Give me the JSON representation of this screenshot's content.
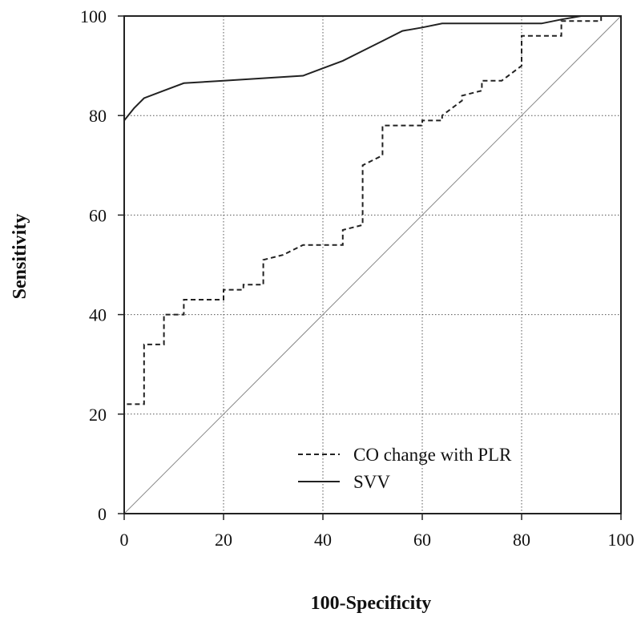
{
  "chart_data": {
    "type": "line",
    "title": "",
    "xlabel": "100-Specificity",
    "ylabel": "Sensitivity",
    "xlim": [
      0,
      100
    ],
    "ylim": [
      0,
      100
    ],
    "xticks": [
      0,
      20,
      40,
      60,
      80,
      100
    ],
    "yticks": [
      0,
      20,
      40,
      60,
      80,
      100
    ],
    "grid": true,
    "legend_position": "bottom-right",
    "series": [
      {
        "name": "CO change with PLR",
        "style": "dashed",
        "step": true,
        "x": [
          0,
          0,
          4,
          4,
          8,
          8,
          12,
          12,
          20,
          20,
          24,
          24,
          28,
          28,
          32,
          36,
          44,
          44,
          48,
          48,
          52,
          52,
          60,
          60,
          64,
          64,
          68,
          68,
          72,
          72,
          76,
          76,
          80,
          80,
          88,
          88,
          96,
          96,
          100
        ],
        "y": [
          0,
          22,
          22,
          34,
          34,
          40,
          40,
          43,
          43,
          45,
          45,
          46,
          46,
          51,
          52,
          54,
          54,
          57,
          58,
          70,
          72,
          78,
          78,
          79,
          79,
          80,
          83,
          84,
          85,
          87,
          87,
          87,
          90,
          96,
          96,
          99,
          99,
          100,
          100
        ]
      },
      {
        "name": "SVV",
        "style": "solid",
        "step": false,
        "x": [
          0,
          0,
          2,
          4,
          8,
          12,
          20,
          28,
          36,
          40,
          44,
          48,
          52,
          56,
          60,
          64,
          72,
          80,
          84,
          88,
          92,
          96,
          100
        ],
        "y": [
          0,
          79,
          81.5,
          83.5,
          85,
          86.5,
          87,
          87.5,
          88,
          89.5,
          91,
          93,
          95,
          97,
          97.7,
          98.5,
          98.5,
          98.5,
          98.5,
          99.3,
          100,
          100,
          100
        ]
      },
      {
        "name": "reference",
        "style": "dotted-diagonal",
        "step": false,
        "x": [
          0,
          100
        ],
        "y": [
          0,
          100
        ]
      }
    ],
    "colors": {
      "lines": "#222222",
      "reference": "#888888",
      "grid": "#555555"
    }
  }
}
